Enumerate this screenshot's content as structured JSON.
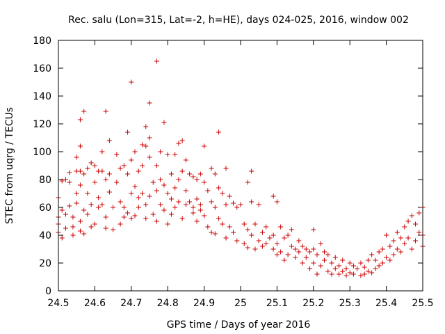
{
  "chart_data": {
    "type": "scatter",
    "title": "Rec. salu (Lon=315, Lat=-2, h=HE), days 024-025, 2016, window 002",
    "xlabel": "GPS time / Days of year 2016",
    "ylabel": "STEC from uqrg / TECUs",
    "xlim": [
      24.5,
      25.5
    ],
    "ylim": [
      0,
      180
    ],
    "xticks": [
      "24.5",
      "24.6",
      "24.7",
      "24.8",
      "24.9",
      "25",
      "25.1",
      "25.2",
      "25.3",
      "25.4",
      "25.5"
    ],
    "yticks": [
      "0",
      "20",
      "40",
      "60",
      "80",
      "100",
      "120",
      "140",
      "160",
      "180"
    ],
    "grid": false,
    "marker": "plus",
    "color": "#cc0000",
    "points": [
      [
        24.5,
        67
      ],
      [
        24.5,
        53
      ],
      [
        24.5,
        48
      ],
      [
        24.5,
        42
      ],
      [
        24.51,
        38
      ],
      [
        24.51,
        58
      ],
      [
        24.51,
        79
      ],
      [
        24.52,
        45
      ],
      [
        24.52,
        55
      ],
      [
        24.52,
        80
      ],
      [
        24.53,
        61
      ],
      [
        24.53,
        85
      ],
      [
        24.53,
        78
      ],
      [
        24.54,
        46
      ],
      [
        24.54,
        40
      ],
      [
        24.54,
        53
      ],
      [
        24.55,
        96
      ],
      [
        24.55,
        86
      ],
      [
        24.55,
        63
      ],
      [
        24.55,
        70
      ],
      [
        24.56,
        123
      ],
      [
        24.56,
        104
      ],
      [
        24.56,
        86
      ],
      [
        24.56,
        76
      ],
      [
        24.56,
        50
      ],
      [
        24.56,
        43
      ],
      [
        24.57,
        129
      ],
      [
        24.57,
        84
      ],
      [
        24.57,
        58
      ],
      [
        24.57,
        41
      ],
      [
        24.58,
        88
      ],
      [
        24.58,
        70
      ],
      [
        24.58,
        55
      ],
      [
        24.59,
        92
      ],
      [
        24.59,
        62
      ],
      [
        24.59,
        46
      ],
      [
        24.6,
        90
      ],
      [
        24.6,
        78
      ],
      [
        24.6,
        48
      ],
      [
        24.61,
        86
      ],
      [
        24.61,
        67
      ],
      [
        24.61,
        60
      ],
      [
        24.62,
        100
      ],
      [
        24.62,
        86
      ],
      [
        24.62,
        62
      ],
      [
        24.63,
        129
      ],
      [
        24.63,
        80
      ],
      [
        24.63,
        53
      ],
      [
        24.63,
        45
      ],
      [
        24.64,
        108
      ],
      [
        24.64,
        84
      ],
      [
        24.64,
        71
      ],
      [
        24.65,
        60
      ],
      [
        24.65,
        44
      ],
      [
        24.66,
        98
      ],
      [
        24.66,
        78
      ],
      [
        24.67,
        88
      ],
      [
        24.67,
        64
      ],
      [
        24.67,
        48
      ],
      [
        24.68,
        90
      ],
      [
        24.68,
        60
      ],
      [
        24.68,
        53
      ],
      [
        24.69,
        114
      ],
      [
        24.69,
        84
      ],
      [
        24.69,
        56
      ],
      [
        24.7,
        150
      ],
      [
        24.7,
        94
      ],
      [
        24.7,
        70
      ],
      [
        24.7,
        52
      ],
      [
        24.71,
        100
      ],
      [
        24.71,
        75
      ],
      [
        24.71,
        54
      ],
      [
        24.72,
        86
      ],
      [
        24.72,
        67
      ],
      [
        24.72,
        60
      ],
      [
        24.73,
        105
      ],
      [
        24.73,
        90
      ],
      [
        24.73,
        70
      ],
      [
        24.74,
        118
      ],
      [
        24.74,
        104
      ],
      [
        24.74,
        62
      ],
      [
        24.74,
        52
      ],
      [
        24.75,
        135
      ],
      [
        24.75,
        110
      ],
      [
        24.75,
        96
      ],
      [
        24.75,
        68
      ],
      [
        24.76,
        78
      ],
      [
        24.76,
        55
      ],
      [
        24.77,
        165
      ],
      [
        24.77,
        90
      ],
      [
        24.77,
        72
      ],
      [
        24.77,
        50
      ],
      [
        24.78,
        100
      ],
      [
        24.78,
        80
      ],
      [
        24.78,
        62
      ],
      [
        24.79,
        121
      ],
      [
        24.79,
        76
      ],
      [
        24.79,
        58
      ],
      [
        24.8,
        98
      ],
      [
        24.8,
        70
      ],
      [
        24.8,
        48
      ],
      [
        24.81,
        84
      ],
      [
        24.81,
        66
      ],
      [
        24.81,
        55
      ],
      [
        24.82,
        98
      ],
      [
        24.82,
        74
      ],
      [
        24.82,
        60
      ],
      [
        24.83,
        106
      ],
      [
        24.83,
        80
      ],
      [
        24.83,
        64
      ],
      [
        24.84,
        108
      ],
      [
        24.84,
        86
      ],
      [
        24.84,
        52
      ],
      [
        24.85,
        94
      ],
      [
        24.85,
        72
      ],
      [
        24.85,
        62
      ],
      [
        24.86,
        84
      ],
      [
        24.86,
        64
      ],
      [
        24.87,
        82
      ],
      [
        24.87,
        60
      ],
      [
        24.87,
        56
      ],
      [
        24.88,
        80
      ],
      [
        24.88,
        66
      ],
      [
        24.88,
        50
      ],
      [
        24.89,
        84
      ],
      [
        24.89,
        62
      ],
      [
        24.89,
        58
      ],
      [
        24.9,
        104
      ],
      [
        24.9,
        78
      ],
      [
        24.9,
        54
      ],
      [
        24.91,
        72
      ],
      [
        24.91,
        46
      ],
      [
        24.92,
        88
      ],
      [
        24.92,
        64
      ],
      [
        24.92,
        42
      ],
      [
        24.93,
        84
      ],
      [
        24.93,
        60
      ],
      [
        24.93,
        41
      ],
      [
        24.94,
        114
      ],
      [
        24.94,
        74
      ],
      [
        24.94,
        52
      ],
      [
        24.95,
        70
      ],
      [
        24.95,
        48
      ],
      [
        24.96,
        88
      ],
      [
        24.96,
        62
      ],
      [
        24.96,
        38
      ],
      [
        24.97,
        68
      ],
      [
        24.97,
        46
      ],
      [
        24.98,
        63
      ],
      [
        24.98,
        42
      ],
      [
        24.99,
        60
      ],
      [
        24.99,
        36
      ],
      [
        25.0,
        62
      ],
      [
        25.01,
        48
      ],
      [
        25.01,
        34
      ],
      [
        25.02,
        78
      ],
      [
        25.02,
        44
      ],
      [
        25.02,
        31
      ],
      [
        25.03,
        86
      ],
      [
        25.03,
        64
      ],
      [
        25.03,
        40
      ],
      [
        25.04,
        48
      ],
      [
        25.04,
        30
      ],
      [
        25.05,
        62
      ],
      [
        25.05,
        36
      ],
      [
        25.06,
        42
      ],
      [
        25.06,
        32
      ],
      [
        25.07,
        46
      ],
      [
        25.07,
        34
      ],
      [
        25.08,
        38
      ],
      [
        25.09,
        68
      ],
      [
        25.09,
        40
      ],
      [
        25.09,
        30
      ],
      [
        25.1,
        64
      ],
      [
        25.1,
        34
      ],
      [
        25.1,
        26
      ],
      [
        25.11,
        46
      ],
      [
        25.11,
        28
      ],
      [
        25.12,
        38
      ],
      [
        25.12,
        22
      ],
      [
        25.13,
        40
      ],
      [
        25.13,
        26
      ],
      [
        25.14,
        44
      ],
      [
        25.14,
        32
      ],
      [
        25.15,
        30
      ],
      [
        25.15,
        24
      ],
      [
        25.16,
        36
      ],
      [
        25.16,
        28
      ],
      [
        25.17,
        32
      ],
      [
        25.17,
        20
      ],
      [
        25.18,
        30
      ],
      [
        25.18,
        24
      ],
      [
        25.19,
        28
      ],
      [
        25.19,
        16
      ],
      [
        25.2,
        44
      ],
      [
        25.2,
        30
      ],
      [
        25.2,
        20
      ],
      [
        25.21,
        26
      ],
      [
        25.21,
        12
      ],
      [
        25.22,
        34
      ],
      [
        25.22,
        18
      ],
      [
        25.23,
        28
      ],
      [
        25.23,
        22
      ],
      [
        25.24,
        26
      ],
      [
        25.24,
        14
      ],
      [
        25.25,
        20
      ],
      [
        25.25,
        12
      ],
      [
        25.26,
        24
      ],
      [
        25.26,
        16
      ],
      [
        25.27,
        18
      ],
      [
        25.27,
        12
      ],
      [
        25.28,
        22
      ],
      [
        25.28,
        14
      ],
      [
        25.29,
        16
      ],
      [
        25.29,
        11
      ],
      [
        25.3,
        20
      ],
      [
        25.3,
        13
      ],
      [
        25.31,
        18
      ],
      [
        25.31,
        12
      ],
      [
        25.32,
        16
      ],
      [
        25.33,
        20
      ],
      [
        25.33,
        11
      ],
      [
        25.34,
        17
      ],
      [
        25.34,
        12
      ],
      [
        25.35,
        22
      ],
      [
        25.35,
        14
      ],
      [
        25.36,
        26
      ],
      [
        25.36,
        13
      ],
      [
        25.37,
        22
      ],
      [
        25.37,
        16
      ],
      [
        25.38,
        28
      ],
      [
        25.38,
        18
      ],
      [
        25.39,
        30
      ],
      [
        25.39,
        20
      ],
      [
        25.4,
        40
      ],
      [
        25.4,
        24
      ],
      [
        25.41,
        32
      ],
      [
        25.41,
        22
      ],
      [
        25.42,
        36
      ],
      [
        25.42,
        26
      ],
      [
        25.43,
        42
      ],
      [
        25.43,
        30
      ],
      [
        25.44,
        38
      ],
      [
        25.44,
        28
      ],
      [
        25.45,
        46
      ],
      [
        25.45,
        34
      ],
      [
        25.46,
        50
      ],
      [
        25.46,
        38
      ],
      [
        25.47,
        54
      ],
      [
        25.47,
        30
      ],
      [
        25.48,
        48
      ],
      [
        25.48,
        36
      ],
      [
        25.49,
        56
      ],
      [
        25.49,
        42
      ],
      [
        25.5,
        60
      ],
      [
        25.5,
        40
      ],
      [
        25.5,
        32
      ]
    ]
  }
}
